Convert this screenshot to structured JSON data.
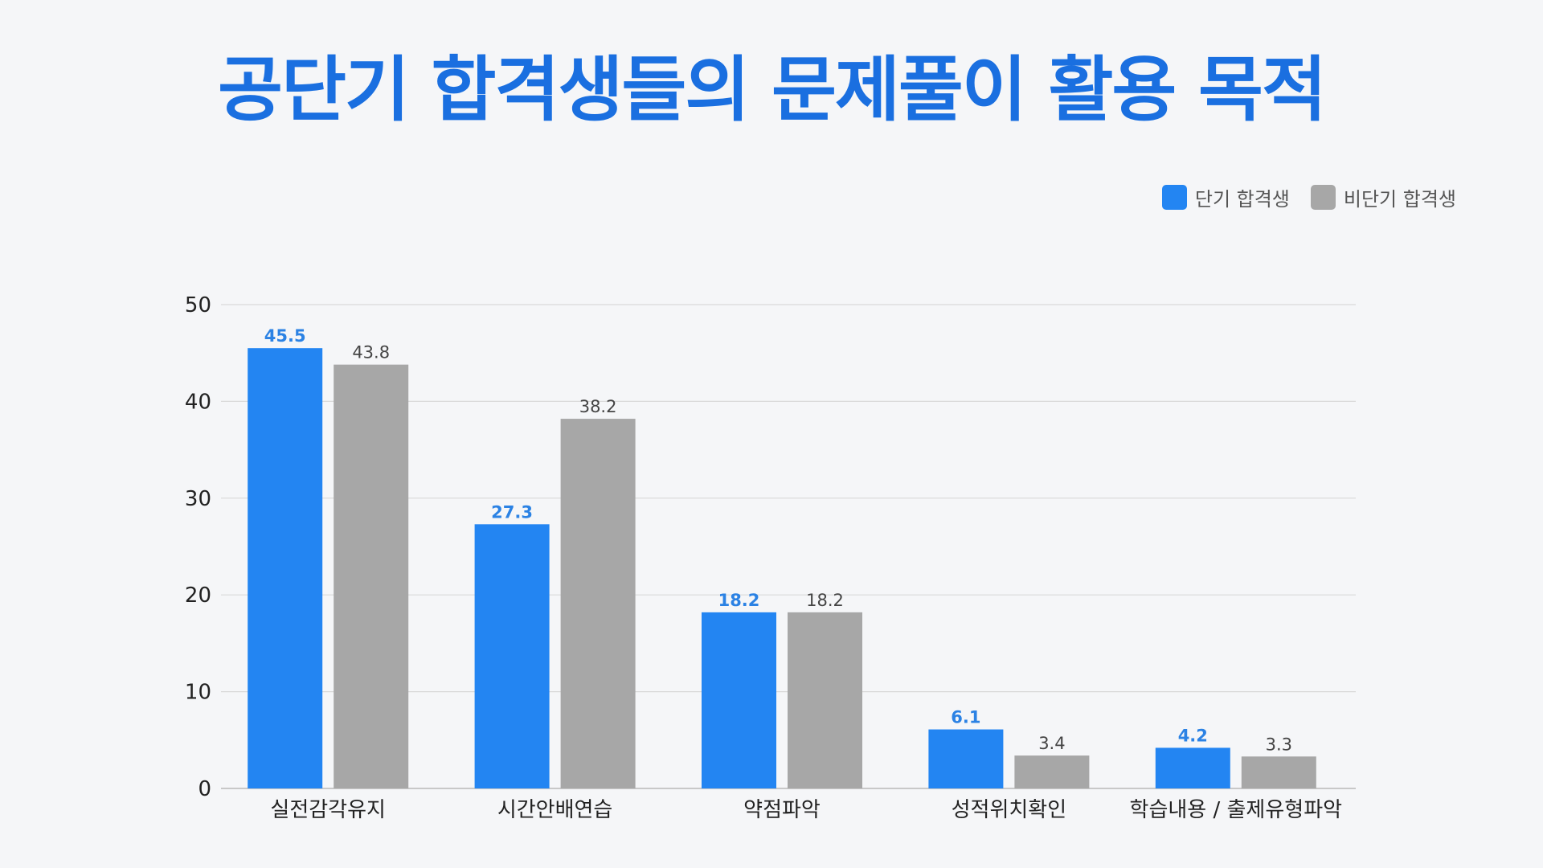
{
  "title": "공단기 합격생들의 문제풀이 활용 목적",
  "colors": {
    "series_blue": "#2385f2",
    "series_gray": "#a7a7a7",
    "blue_label": "#2b82e4",
    "gray_label": "#444444",
    "title": "#1a6fe0",
    "grid": "#d9d9d9",
    "background": "#f5f6f8"
  },
  "chart_data": {
    "type": "bar",
    "title": "공단기 합격생들의 문제풀이 활용 목적",
    "categories": [
      "실전감각유지",
      "시간안배연습",
      "약점파악",
      "성적위치확인",
      "학습내용 / 출제유형파악"
    ],
    "series": [
      {
        "name": "단기 합격생",
        "values": [
          45.5,
          27.3,
          18.2,
          6.1,
          4.2
        ],
        "color": "#2385f2"
      },
      {
        "name": "비단기 합격생",
        "values": [
          43.8,
          38.2,
          18.2,
          3.4,
          3.3
        ],
        "color": "#a7a7a7"
      }
    ],
    "ylim": [
      0,
      50
    ],
    "yticks": [
      "0",
      "10",
      "20",
      "30",
      "40",
      "50"
    ],
    "grid": true,
    "legend_position": "top-right",
    "data_labels": true
  }
}
